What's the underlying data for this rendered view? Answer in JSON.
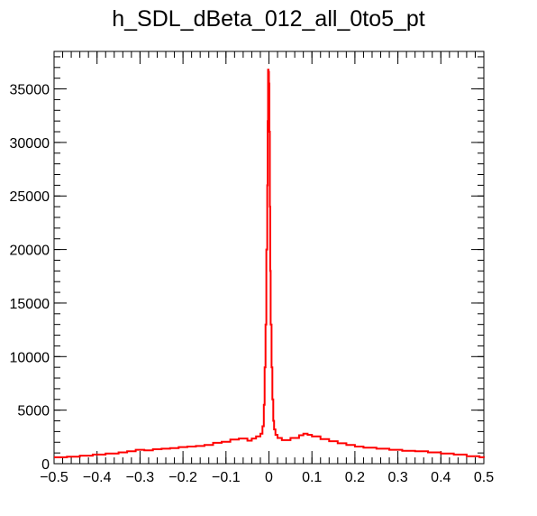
{
  "chart_data": {
    "type": "histogram-step",
    "title": "h_SDL_dBeta_012_all_0to5_pt",
    "xlabel": "",
    "ylabel": "",
    "xlim": [
      -0.5,
      0.5
    ],
    "ylim": [
      0,
      38500
    ],
    "x_major_ticks": [
      -0.5,
      -0.4,
      -0.3,
      -0.2,
      -0.1,
      0,
      0.1,
      0.2,
      0.3,
      0.4,
      0.5
    ],
    "x_tick_labels": [
      "−0.5",
      "−0.4",
      "−0.3",
      "−0.2",
      "−0.1",
      "0",
      "0.1",
      "0.2",
      "0.3",
      "0.4",
      "0.5"
    ],
    "y_major_ticks": [
      0,
      5000,
      10000,
      15000,
      20000,
      25000,
      30000,
      35000
    ],
    "y_tick_labels": [
      "0",
      "5000",
      "10000",
      "15000",
      "20000",
      "25000",
      "30000",
      "35000"
    ],
    "grid": false,
    "line_color": "#ff0000",
    "series": [
      {
        "x": [
          -0.5,
          -0.47,
          -0.44,
          -0.41,
          -0.38,
          -0.35,
          -0.33,
          -0.31,
          -0.29,
          -0.27,
          -0.25,
          -0.23,
          -0.21,
          -0.19,
          -0.17,
          -0.15,
          -0.13,
          -0.11,
          -0.09,
          -0.07,
          -0.05,
          -0.04,
          -0.03,
          -0.02,
          -0.015,
          -0.012,
          -0.01,
          -0.008,
          -0.006,
          -0.004,
          -0.003,
          -0.002,
          -0.001,
          0.0,
          0.001,
          0.002,
          0.003,
          0.004,
          0.006,
          0.008,
          0.01,
          0.012,
          0.015,
          0.02,
          0.03,
          0.05,
          0.07,
          0.08,
          0.09,
          0.1,
          0.12,
          0.14,
          0.16,
          0.18,
          0.2,
          0.22,
          0.25,
          0.28,
          0.31,
          0.34,
          0.37,
          0.4,
          0.43,
          0.46,
          0.49,
          0.5
        ],
        "y": [
          600,
          650,
          750,
          850,
          950,
          1050,
          1150,
          1300,
          1250,
          1350,
          1400,
          1450,
          1550,
          1600,
          1650,
          1750,
          1950,
          2050,
          2250,
          2350,
          2150,
          2350,
          2550,
          2800,
          3500,
          5500,
          9000,
          13000,
          20000,
          26000,
          32000,
          36800,
          36600,
          35500,
          31000,
          24000,
          18000,
          13000,
          9000,
          6000,
          4000,
          3200,
          2700,
          2400,
          2200,
          2400,
          2650,
          2800,
          2700,
          2550,
          2300,
          2100,
          1900,
          1750,
          1600,
          1500,
          1400,
          1300,
          1200,
          1150,
          1050,
          950,
          850,
          700,
          600,
          550
        ]
      }
    ]
  }
}
